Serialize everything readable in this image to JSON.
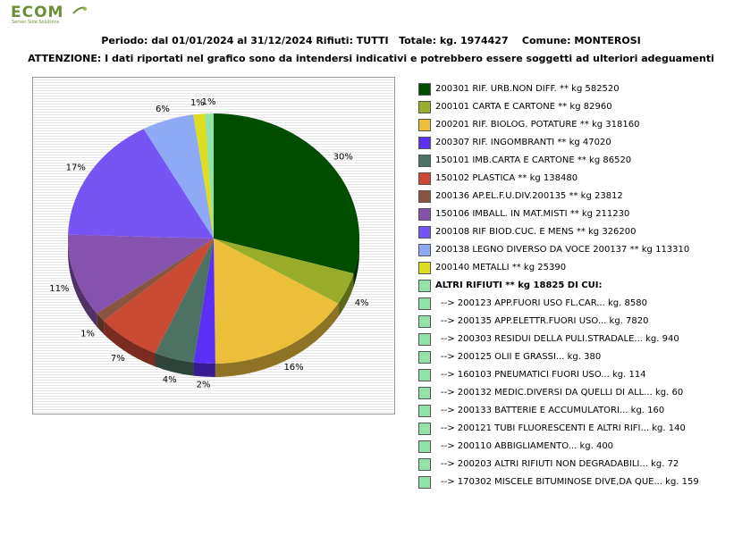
{
  "logo": {
    "text": "ECOM",
    "tagline": "Server Side Solutions"
  },
  "header": {
    "line1": "Periodo: dal 01/01/2024 al 31/12/2024 Rifiuti: TUTTI   Totale: kg. 1974427    Comune: MONTEROSI",
    "line2": "ATTENZIONE: I dati riportati nel grafico sono da intendersi indicativi e potrebbero essere soggetti ad ulteriori adeguamenti"
  },
  "chart_data": {
    "type": "pie",
    "title": "",
    "start_angle_deg": 90,
    "direction": "clockwise",
    "three_d": true,
    "slices": [
      {
        "label": "200301 RIF. URB.NON DIFF. ** kg 582520",
        "value": 582520,
        "pct_label": "30%",
        "color": "#004d00"
      },
      {
        "label": "200101 CARTA E CARTONE ** kg 82960",
        "value": 82960,
        "pct_label": "4%",
        "color": "#99ad2b"
      },
      {
        "label": "200201 RIF. BIOLOG. POTATURE ** kg 318160",
        "value": 318160,
        "pct_label": "16%",
        "color": "#ebbf3a"
      },
      {
        "label": "200307 RIF. INGOMBRANTI ** kg 47020",
        "value": 47020,
        "pct_label": "2%",
        "color": "#5b2ff5"
      },
      {
        "label": "150101 IMB.CARTA E CARTONE ** kg 86520",
        "value": 86520,
        "pct_label": "4%",
        "color": "#4d7263"
      },
      {
        "label": "150102 PLASTICA ** kg 138480",
        "value": 138480,
        "pct_label": "7%",
        "color": "#c94a33"
      },
      {
        "label": "200136 AP.EL.F.U.DIV.200135 ** kg 23812",
        "value": 23812,
        "pct_label": "1%",
        "color": "#8a5540"
      },
      {
        "label": "150106 IMBALL. IN MAT.MISTI ** kg 211230",
        "value": 211230,
        "pct_label": "11%",
        "color": "#8552ad"
      },
      {
        "label": "200108 RIF BIOD.CUC. E MENS ** kg 326200",
        "value": 326200,
        "pct_label": "17%",
        "color": "#7755f5"
      },
      {
        "label": "200138 LEGNO DIVERSO DA VOCE 200137 ** kg 113310",
        "value": 113310,
        "pct_label": "6%",
        "color": "#8ea9f5"
      },
      {
        "label": "200140 METALLI ** kg 25390",
        "value": 25390,
        "pct_label": "1%",
        "color": "#dedd20"
      },
      {
        "label": "ALTRI RIFIUTI ** kg 18825 DI CUI:",
        "value": 18825,
        "pct_label": "1%",
        "color": "#8fe3a8"
      }
    ],
    "other_breakdown": [
      {
        "label": "-->  200123 APP.FUORI USO FL.CAR... kg. 8580",
        "color": "#8fe3a8"
      },
      {
        "label": "-->  200135 APP.ELETTR.FUORI USO... kg. 7820",
        "color": "#8fe3a8"
      },
      {
        "label": "-->  200303 RESIDUI DELLA PULI.STRADALE... kg. 940",
        "color": "#8fe3a8"
      },
      {
        "label": "-->  200125 OLII E GRASSI... kg. 380",
        "color": "#8fe3a8"
      },
      {
        "label": "-->  160103 PNEUMATICI FUORI USO... kg. 114",
        "color": "#8fe3a8"
      },
      {
        "label": "-->  200132 MEDIC.DIVERSI DA QUELLI DI ALL... kg. 60",
        "color": "#8fe3a8"
      },
      {
        "label": "-->  200133 BATTERIE E ACCUMULATORI... kg. 160",
        "color": "#8fe3a8"
      },
      {
        "label": "-->  200121 TUBI FLUORESCENTI E ALTRI RIFI... kg. 140",
        "color": "#8fe3a8"
      },
      {
        "label": "-->  200110 ABBIGLIAMENTO... kg. 400",
        "color": "#8fe3a8"
      },
      {
        "label": "-->  200203 ALTRI RIFIUTI NON DEGRADABILI... kg. 72",
        "color": "#8fe3a8"
      },
      {
        "label": "-->  170302 MISCELE BITUMINOSE DIVE,DA QUE... kg. 159",
        "color": "#8fe3a8"
      }
    ]
  }
}
